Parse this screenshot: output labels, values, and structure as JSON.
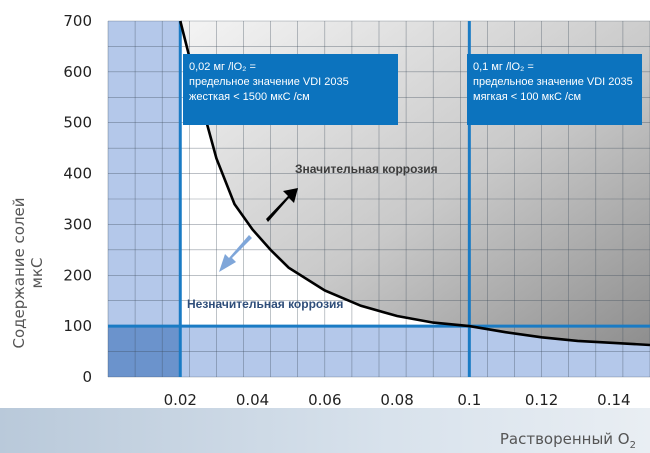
{
  "chart_data": {
    "type": "line",
    "xlabel": "Растворенный О",
    "xlabel_sub": "2",
    "ylabel": "Содержание солей мкС",
    "xlim": [
      0,
      0.15
    ],
    "ylim": [
      0,
      700
    ],
    "x_ticks": [
      "0.02",
      "0.04",
      "0.06",
      "0.08",
      "0.1",
      "0.12",
      "0.14"
    ],
    "x_tick_values": [
      0.02,
      0.04,
      0.06,
      0.08,
      0.1,
      0.12,
      0.14
    ],
    "y_ticks": [
      "0",
      "100",
      "200",
      "300",
      "400",
      "500",
      "600",
      "700"
    ],
    "y_tick_values": [
      0,
      100,
      200,
      300,
      400,
      500,
      600,
      700
    ],
    "grid": true,
    "series": [
      {
        "x": [
          0.02,
          0.025,
          0.03,
          0.035,
          0.04,
          0.045,
          0.05,
          0.06,
          0.07,
          0.08,
          0.09,
          0.1,
          0.11,
          0.12,
          0.13,
          0.14,
          0.15
        ],
        "y": [
          700,
          560,
          430,
          340,
          290,
          250,
          215,
          170,
          140,
          120,
          107,
          100,
          88,
          78,
          71,
          67,
          63
        ]
      }
    ],
    "reference_lines": [
      {
        "axis": "x",
        "value": 0.02
      },
      {
        "axis": "x",
        "value": 0.1
      },
      {
        "axis": "y",
        "value": 100
      }
    ],
    "annotations": {
      "high_corrosion": "Значительная коррозия",
      "low_corrosion": "Незначительная коррозия",
      "box1": [
        "0,02 мг /lO₂ =",
        "предельное значение VDI 2035",
        "жесткая < 1500 мкС /см"
      ],
      "box2": [
        "0,1 мг /lO₂ =",
        "предельное значение VDI 2035",
        "мягкая < 100 мкС /см"
      ]
    },
    "colors": {
      "grid_fill": "#b4c8ea",
      "grid_fill_dark": "#6b93cc",
      "reference_line": "#1a7bc4",
      "curve": "#000000",
      "box": "#0c73be",
      "arrow_up": "#000000",
      "arrow_down": "#7fa6d9"
    }
  }
}
